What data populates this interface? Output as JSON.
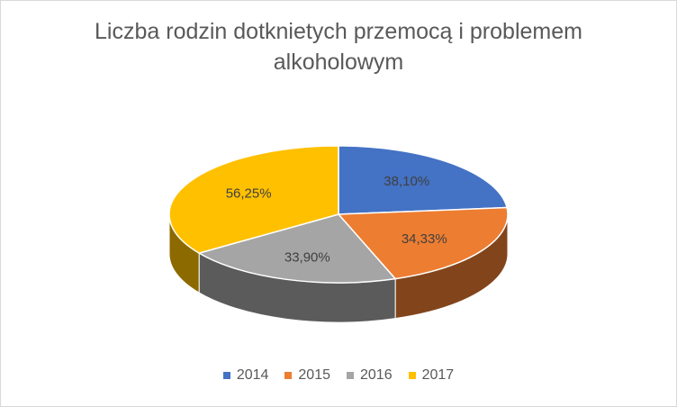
{
  "chart_data": {
    "type": "pie",
    "title_lines": [
      "Liczba rodzin dotknietych przemocą  i problemem",
      "alkoholowym"
    ],
    "categories": [
      "2014",
      "2015",
      "2016",
      "2017"
    ],
    "values": [
      38.1,
      34.33,
      33.9,
      56.25
    ],
    "labels": [
      "38,10%",
      "34,33%",
      "33,90%",
      "56,25%"
    ],
    "colors": [
      "#4472c4",
      "#ed7d31",
      "#a5a5a5",
      "#ffc000"
    ],
    "legend_position": "bottom",
    "style": "3d"
  }
}
